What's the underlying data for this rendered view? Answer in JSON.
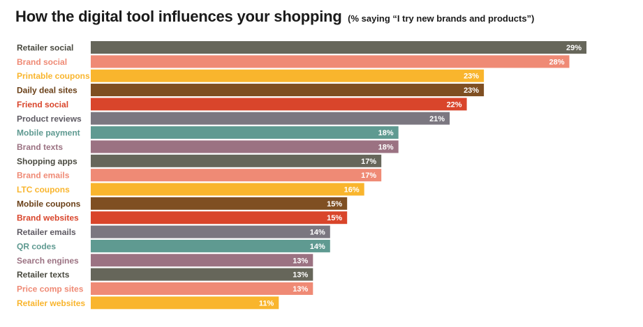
{
  "header": {
    "title": "How the digital tool influences your shopping",
    "subtitle": "(% saying “I try new brands and products”)"
  },
  "chart_data": {
    "type": "bar",
    "orientation": "horizontal",
    "title": "How the digital tool influences your shopping",
    "subtitle": "(% saying “I try new brands and products”)",
    "xlabel": "",
    "ylabel": "",
    "unit": "%",
    "xlim": [
      0,
      29
    ],
    "grid": false,
    "legend": "none",
    "categories": [
      "Retailer social",
      "Brand social",
      "Printable coupons",
      "Daily deal sites",
      "Friend social",
      "Product reviews",
      "Mobile payment",
      "Brand texts",
      "Shopping apps",
      "Brand emails",
      "LTC coupons",
      "Mobile coupons",
      "Brand websites",
      "Retailer emails",
      "QR codes",
      "Search engines",
      "Retailer texts",
      "Price comp sites",
      "Retailer websites"
    ],
    "values": [
      29,
      28,
      23,
      23,
      22,
      21,
      18,
      18,
      17,
      17,
      16,
      15,
      15,
      14,
      14,
      13,
      13,
      13,
      11
    ],
    "value_labels": [
      "29%",
      "28%",
      "23%",
      "23%",
      "22%",
      "21%",
      "18%",
      "18%",
      "17%",
      "17%",
      "16%",
      "15%",
      "15%",
      "14%",
      "14%",
      "13%",
      "13%",
      "13%",
      "11%"
    ],
    "colors": [
      "#66665a",
      "#ef8a75",
      "#f9b52d",
      "#7f4f22",
      "#d9452b",
      "#7b7780",
      "#5f9a91",
      "#9b7282",
      "#66665a",
      "#ef8a75",
      "#f9b52d",
      "#7f4f22",
      "#d9452b",
      "#7b7780",
      "#5f9a91",
      "#9b7282",
      "#66665a",
      "#ef8a75",
      "#f9b52d"
    ],
    "label_colors": [
      "#4a4a40",
      "#ef8a75",
      "#f9b52d",
      "#6a4018",
      "#d9452b",
      "#5e5a63",
      "#5f9a91",
      "#9b7282",
      "#4a4a40",
      "#ef8a75",
      "#f9b52d",
      "#6a4018",
      "#d9452b",
      "#5e5a63",
      "#5f9a91",
      "#9b7282",
      "#4a4a40",
      "#ef8a75",
      "#f9b52d"
    ]
  }
}
